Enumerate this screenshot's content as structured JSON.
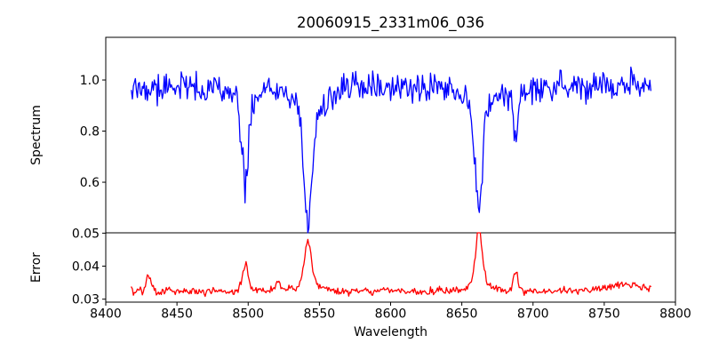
{
  "figure": {
    "title": "20060915_2331m06_036",
    "background": "#ffffff",
    "frame_color": "#000000",
    "text_color": "#000000"
  },
  "chart_data": [
    {
      "type": "line",
      "panel": "spectrum",
      "title": "20060915_2331m06_036",
      "xlabel": "",
      "ylabel": "Spectrum",
      "legend": null,
      "grid": false,
      "line_color": "#0000ff",
      "xlim": [
        8400,
        8800
      ],
      "ylim": [
        0.402,
        1.167
      ],
      "yticks": [
        0.6,
        0.8,
        1.0
      ],
      "ytick_labels": [
        "0.6",
        "0.8",
        "1.0"
      ],
      "xticks": [],
      "xtick_labels": [],
      "x_start": 8418,
      "x_end": 8783,
      "x_step": 0.7,
      "continuum": 0.975,
      "noise_sigma_scale": 0.9,
      "absorption_lines": [
        {
          "center": 8468,
          "core_depth": 0.05,
          "core_width": 2.0,
          "wing_depth": 0.0,
          "wing_width": 6
        },
        {
          "center": 8498,
          "core_depth": 0.33,
          "core_width": 2.2,
          "wing_depth": 0.06,
          "wing_width": 9
        },
        {
          "center": 8542,
          "core_depth": 0.42,
          "core_width": 2.8,
          "wing_depth": 0.1,
          "wing_width": 11
        },
        {
          "center": 8662,
          "core_depth": 0.4,
          "core_width": 2.6,
          "wing_depth": 0.08,
          "wing_width": 10
        },
        {
          "center": 8688,
          "core_depth": 0.18,
          "core_width": 1.8,
          "wing_depth": 0.02,
          "wing_width": 5
        }
      ],
      "key_points_est": [
        [
          8418,
          0.95
        ],
        [
          8498,
          0.59
        ],
        [
          8542,
          0.45
        ],
        [
          8662,
          0.49
        ],
        [
          8688,
          0.77
        ],
        [
          8783,
          0.95
        ]
      ]
    },
    {
      "type": "line",
      "panel": "error",
      "title": "",
      "xlabel": "Wavelength",
      "ylabel": "Error",
      "legend": null,
      "grid": false,
      "line_color": "#ff0000",
      "xlim": [
        8400,
        8800
      ],
      "ylim": [
        0.0291,
        0.0501
      ],
      "yticks": [
        0.03,
        0.04,
        0.05
      ],
      "ytick_labels": [
        "0.03",
        "0.04",
        "0.05"
      ],
      "xticks": [
        8400,
        8450,
        8500,
        8550,
        8600,
        8650,
        8700,
        8750,
        8800
      ],
      "xtick_labels": [
        "8400",
        "8450",
        "8500",
        "8550",
        "8600",
        "8650",
        "8700",
        "8750",
        "8800"
      ],
      "x_start": 8418,
      "x_end": 8783,
      "x_step": 0.7,
      "baseline": 0.0325,
      "noise_sigma": 0.0006,
      "peaks": [
        {
          "center": 8430,
          "height": 0.0045,
          "width": 1.5
        },
        {
          "center": 8498,
          "height": 0.008,
          "width": 2.2
        },
        {
          "center": 8521,
          "height": 0.003,
          "width": 1.8
        },
        {
          "center": 8542,
          "height": 0.0125,
          "width": 2.5
        },
        {
          "center": 8543,
          "height": 0.002,
          "width": 8.0
        },
        {
          "center": 8662,
          "height": 0.016,
          "width": 2.3
        },
        {
          "center": 8663,
          "height": 0.0025,
          "width": 8.0
        },
        {
          "center": 8688,
          "height": 0.006,
          "width": 1.6
        },
        {
          "center": 8765,
          "height": 0.0018,
          "width": 12.0
        }
      ],
      "key_points_est": [
        [
          8418,
          0.033
        ],
        [
          8498,
          0.041
        ],
        [
          8542,
          0.046
        ],
        [
          8662,
          0.05
        ],
        [
          8688,
          0.0395
        ],
        [
          8783,
          0.034
        ]
      ]
    }
  ]
}
